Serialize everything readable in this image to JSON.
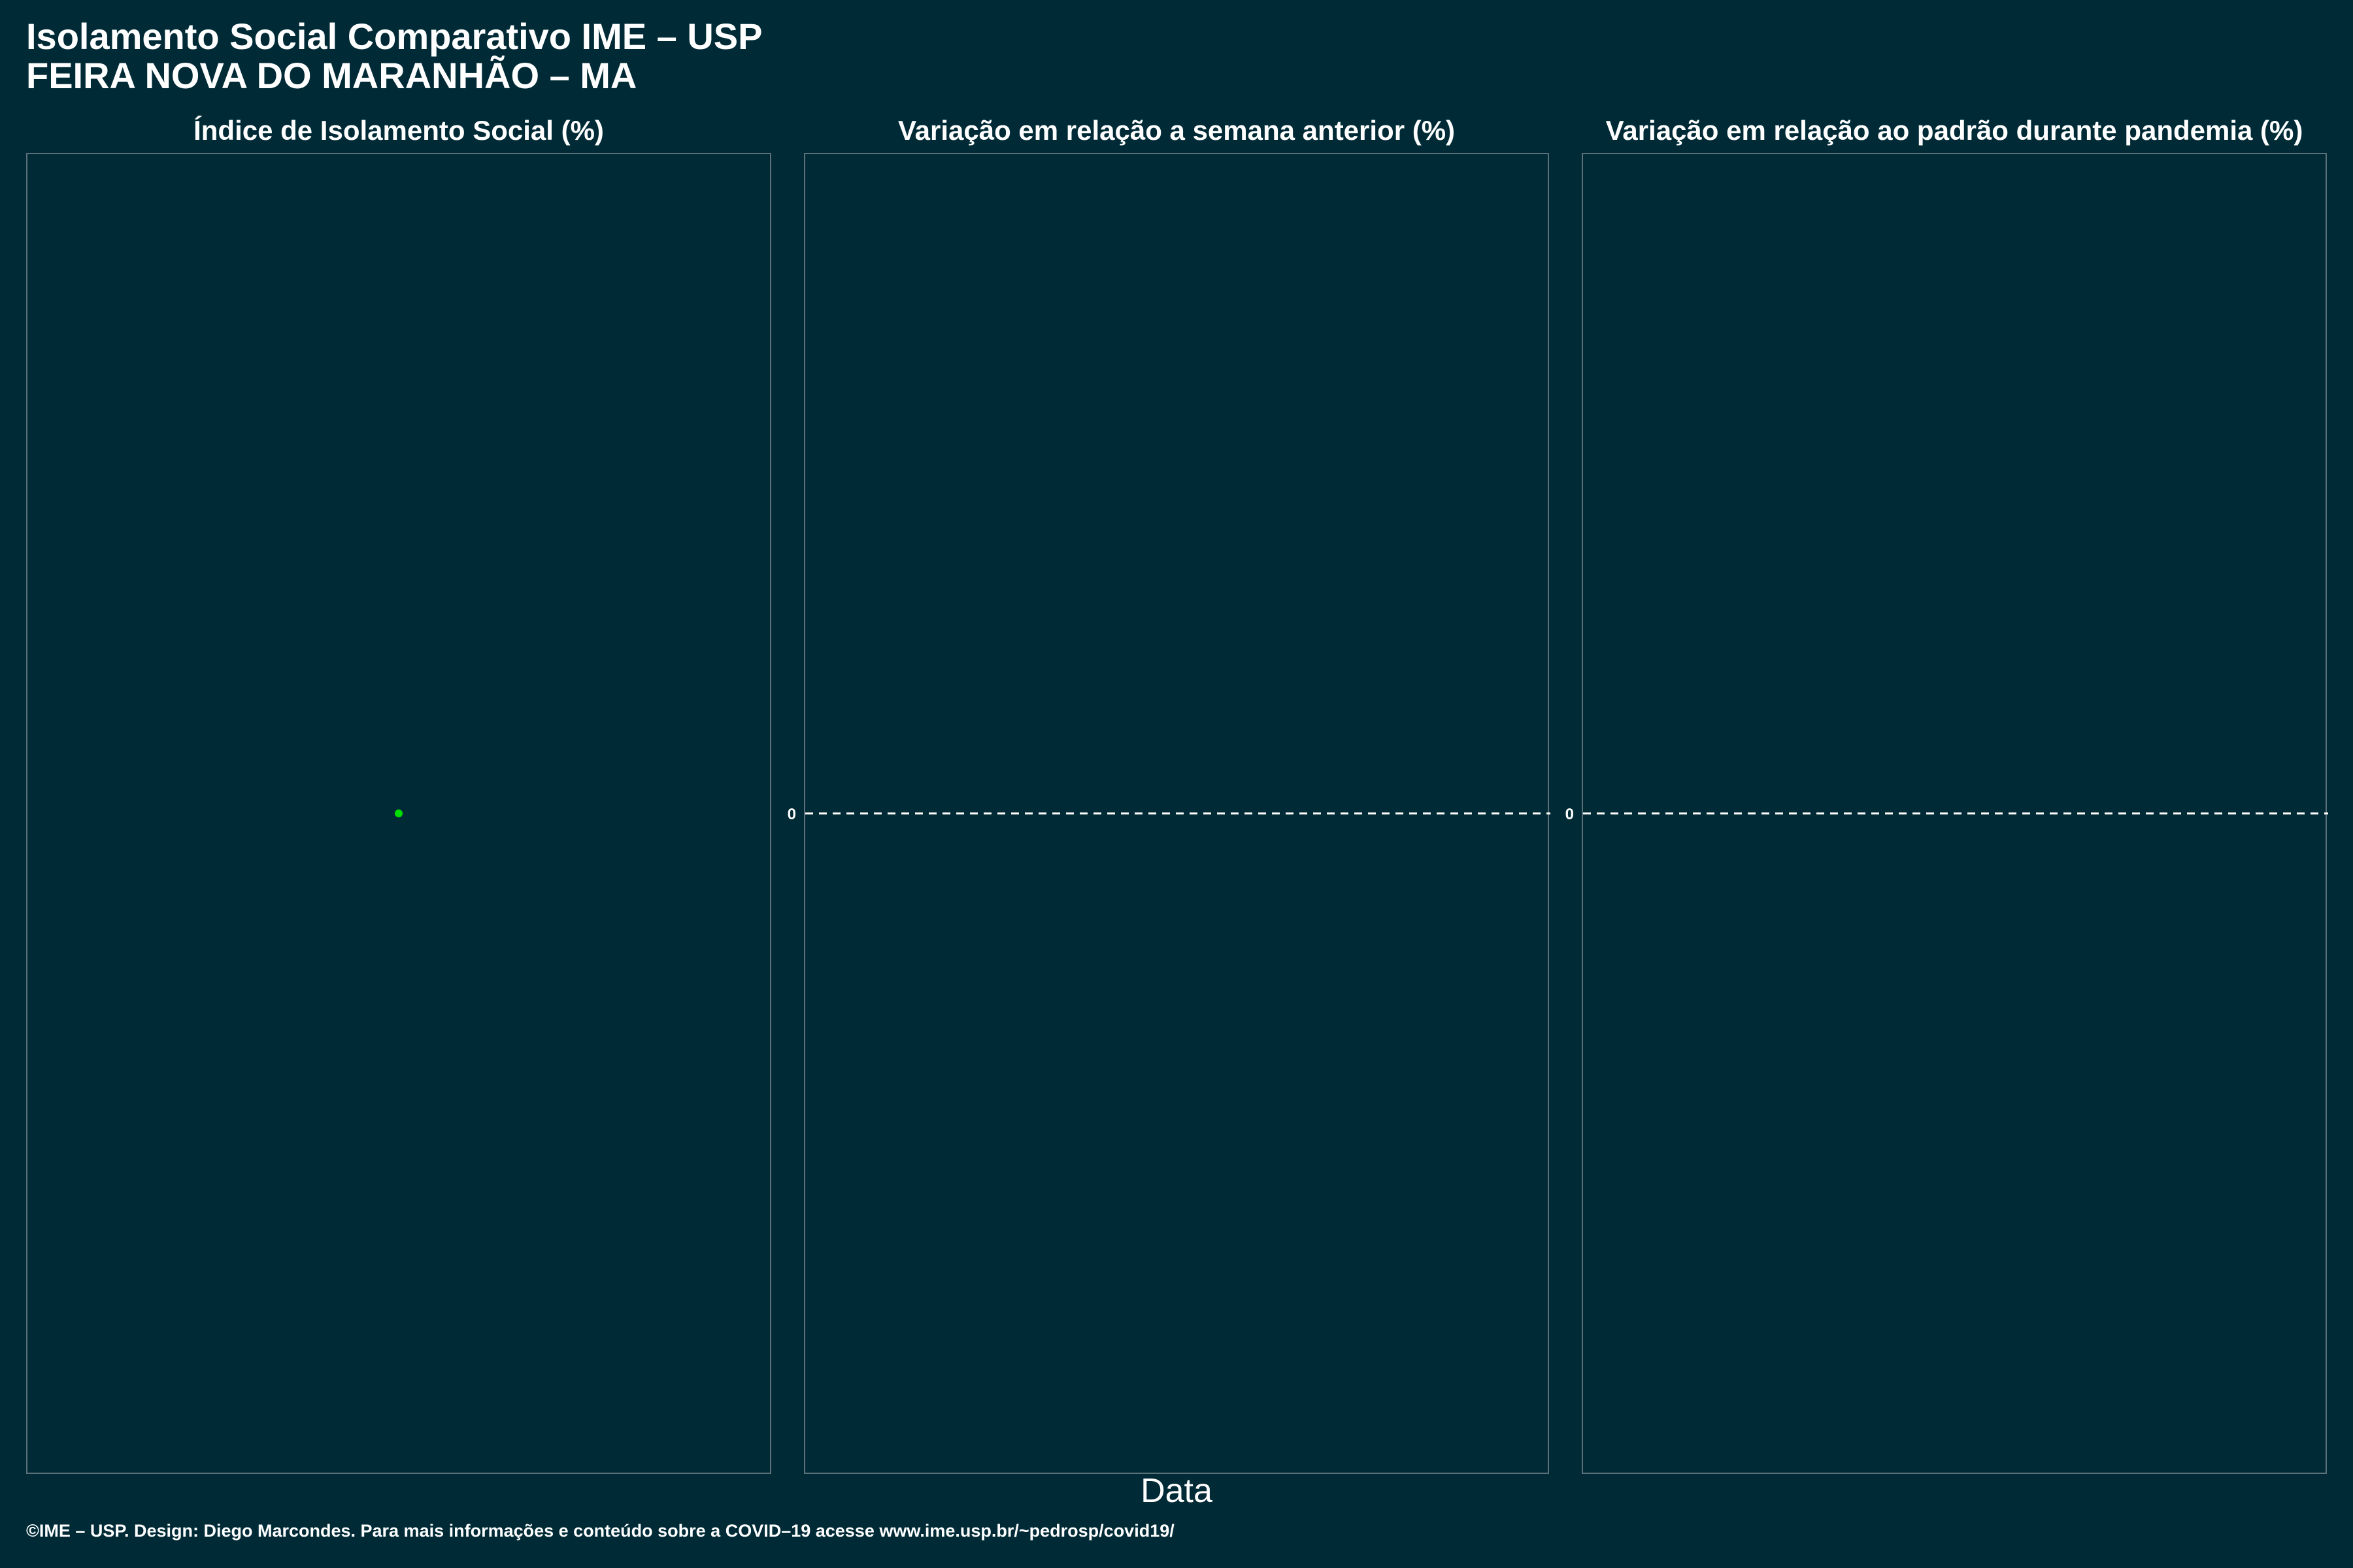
{
  "header": {
    "title_line1": "Isolamento Social Comparativo IME – USP",
    "title_line2": "FEIRA NOVA DO MARANHÃO – MA"
  },
  "colors": {
    "background": "#002b36",
    "panel_border": "#5b7078",
    "point": "#00dd00",
    "reference_line": "#ffffff"
  },
  "chart_data": [
    {
      "type": "scatter",
      "title": "Índice de Isolamento Social (%)",
      "xlabel": "Data",
      "ylabel": "",
      "series": [
        {
          "points": [
            {
              "x": null,
              "y": null
            }
          ]
        }
      ],
      "grid": false
    },
    {
      "type": "line",
      "title": "Variação em relação a semana anterior (%)",
      "xlabel": "Data",
      "ylabel": "",
      "y_ticks": [
        "0"
      ],
      "reference_line": {
        "y": 0,
        "style": "dashed"
      },
      "series": [],
      "grid": false
    },
    {
      "type": "line",
      "title": "Variação em relação ao padrão durante pandemia (%)",
      "xlabel": "Data",
      "ylabel": "",
      "y_ticks": [
        "0"
      ],
      "reference_line": {
        "y": 0,
        "style": "dashed"
      },
      "series": [],
      "grid": false
    }
  ],
  "shared_xlabel": "Data",
  "footer": {
    "credit": "©IME – USP. Design: Diego Marcondes. Para mais informações e conteúdo sobre a COVID–19 acesse www.ime.usp.br/~pedrosp/covid19/"
  }
}
